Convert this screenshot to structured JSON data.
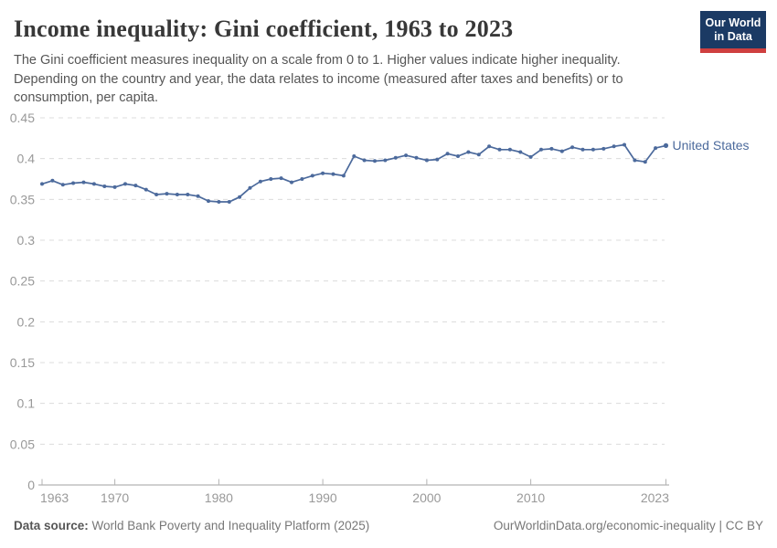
{
  "header": {
    "title": "Income inequality: Gini coefficient, 1963 to 2023",
    "subtitle": "The Gini coefficient measures inequality on a scale from 0 to 1. Higher values indicate higher inequality. Depending on the country and year, the data relates to income (measured after taxes and benefits) or to consumption, per capita.",
    "logo_line1": "Our World",
    "logo_line2": "in Data"
  },
  "chart_data": {
    "type": "line",
    "title": "Income inequality: Gini coefficient, 1963 to 2023",
    "entity": "United States",
    "xlim": [
      1963,
      2023
    ],
    "ylim": [
      0,
      0.45
    ],
    "grid": "horizontal-dashed",
    "legend_position": "end-of-line-label",
    "xticks": [
      1963,
      1970,
      1980,
      1990,
      2000,
      2010,
      2023
    ],
    "ytick_values": [
      0,
      0.05,
      0.1,
      0.15,
      0.2,
      0.25,
      0.3,
      0.35,
      0.4,
      0.45
    ],
    "ytick_labels": [
      "0",
      "0.05",
      "0.1",
      "0.15",
      "0.2",
      "0.25",
      "0.3",
      "0.35",
      "0.4",
      "0.45"
    ],
    "x": [
      1963,
      1964,
      1965,
      1966,
      1967,
      1968,
      1969,
      1970,
      1971,
      1972,
      1973,
      1974,
      1975,
      1976,
      1977,
      1978,
      1979,
      1980,
      1981,
      1982,
      1983,
      1984,
      1985,
      1986,
      1987,
      1988,
      1989,
      1990,
      1991,
      1992,
      1993,
      1994,
      1995,
      1996,
      1997,
      1998,
      1999,
      2000,
      2001,
      2002,
      2003,
      2004,
      2005,
      2006,
      2007,
      2008,
      2009,
      2010,
      2011,
      2012,
      2013,
      2014,
      2015,
      2016,
      2017,
      2018,
      2019,
      2020,
      2021,
      2022,
      2023
    ],
    "series": [
      {
        "name": "United States",
        "color": "#4c6a9c",
        "values": [
          0.369,
          0.373,
          0.368,
          0.37,
          0.371,
          0.369,
          0.366,
          0.365,
          0.369,
          0.367,
          0.362,
          0.356,
          0.357,
          0.356,
          0.356,
          0.354,
          0.348,
          0.347,
          0.347,
          0.353,
          0.364,
          0.372,
          0.375,
          0.376,
          0.371,
          0.375,
          0.379,
          0.382,
          0.381,
          0.379,
          0.403,
          0.398,
          0.397,
          0.398,
          0.401,
          0.404,
          0.401,
          0.398,
          0.399,
          0.406,
          0.403,
          0.408,
          0.405,
          0.415,
          0.411,
          0.411,
          0.408,
          0.402,
          0.411,
          0.412,
          0.409,
          0.414,
          0.411,
          0.411,
          0.412,
          0.415,
          0.417,
          0.398,
          0.396,
          0.413,
          0.416
        ]
      }
    ],
    "end_label": "United States"
  },
  "footer": {
    "source_label": "Data source:",
    "source_text": "World Bank Poverty and Inequality Platform (2025)",
    "credit": "OurWorldinData.org/economic-inequality | CC BY"
  },
  "colors": {
    "line": "#4c6a9c",
    "title_text": "#383838",
    "subtitle_text": "#565656",
    "axis_text": "#999999",
    "gridline": "#dcdcdc",
    "axis_line": "#b3b3b3",
    "logo_bg": "#1b3a64",
    "logo_stripe": "#cf3f3f",
    "footer_text": "#777777"
  }
}
